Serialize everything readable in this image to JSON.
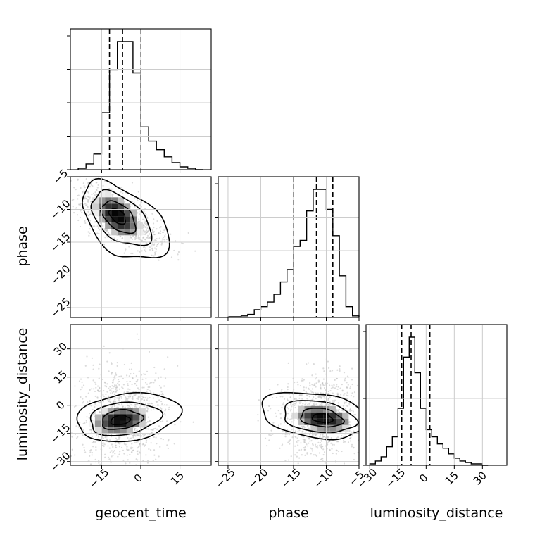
{
  "chart_data": {
    "type": "corner",
    "parameters": [
      "geocent_time",
      "phase",
      "luminosity_distance"
    ],
    "axis_labels": {
      "geocent_time": "geocent_time",
      "phase": "phase",
      "luminosity_distance": "luminosity_distance"
    },
    "ranges": {
      "geocent_time": [
        -27,
        27
      ],
      "phase": [
        -26.5,
        -5
      ],
      "luminosity_distance": [
        -32,
        43
      ]
    },
    "ticks": {
      "geocent_time": {
        "values": [
          -15,
          0,
          15
        ],
        "labels": [
          "−15",
          "0",
          "15"
        ]
      },
      "phase": {
        "values": [
          -25,
          -20,
          -15,
          -10,
          -5
        ],
        "labels": [
          "−25",
          "−20",
          "−15",
          "−10",
          "−5"
        ]
      },
      "luminosity_distance": {
        "values": [
          -30,
          -15,
          0,
          15,
          30
        ],
        "labels": [
          "−30",
          "−15",
          "0",
          "15",
          "30"
        ]
      }
    },
    "grid": true,
    "histograms": [
      {
        "parameter": "geocent_time",
        "bin_edges": [
          -24,
          -21,
          -18,
          -15,
          -12,
          -9,
          -6,
          -3,
          0,
          3,
          6,
          9,
          12,
          15,
          18,
          21,
          24
        ],
        "counts": [
          0.01,
          0.04,
          0.11,
          0.4,
          0.7,
          0.9,
          0.9,
          0.68,
          0.3,
          0.2,
          0.14,
          0.09,
          0.05,
          0.02,
          0.01,
          0.0
        ],
        "quantiles": [
          -12,
          -7,
          0
        ]
      },
      {
        "parameter": "phase",
        "bin_edges": [
          -25,
          -24,
          -23,
          -22,
          -21,
          -20,
          -19,
          -18,
          -17,
          -16,
          -15,
          -14,
          -13,
          -12,
          -11,
          -10,
          -9,
          -8,
          -7,
          -6,
          -5
        ],
        "counts": [
          0.005,
          0.005,
          0.01,
          0.02,
          0.05,
          0.07,
          0.1,
          0.15,
          0.23,
          0.31,
          0.46,
          0.5,
          0.69,
          0.83,
          0.83,
          0.7,
          0.53,
          0.27,
          0.07,
          0.01
        ],
        "quantiles": [
          -15,
          -11.5,
          -9
        ]
      },
      {
        "parameter": "luminosity_distance",
        "bin_edges": [
          -30,
          -27,
          -24,
          -21,
          -18,
          -15,
          -12,
          -9,
          -6,
          -3,
          0,
          3,
          6,
          9,
          12,
          15,
          18,
          21,
          24,
          27,
          30,
          33
        ],
        "counts": [
          0.01,
          0.03,
          0.06,
          0.13,
          0.2,
          0.4,
          0.76,
          0.9,
          0.65,
          0.4,
          0.25,
          0.2,
          0.15,
          0.12,
          0.08,
          0.05,
          0.03,
          0.02,
          0.01,
          0.01,
          0.0
        ],
        "quantiles": [
          -13,
          -8,
          2
        ]
      }
    ],
    "joint_2d": [
      {
        "x": "geocent_time",
        "y": "phase",
        "peak": [
          -9,
          -11
        ],
        "correlation": "negative"
      },
      {
        "x": "geocent_time",
        "y": "luminosity_distance",
        "peak": [
          -8,
          -8
        ],
        "correlation": "none"
      },
      {
        "x": "phase",
        "y": "luminosity_distance",
        "peak": [
          -10.5,
          -7
        ],
        "correlation": "weak negative"
      }
    ]
  }
}
